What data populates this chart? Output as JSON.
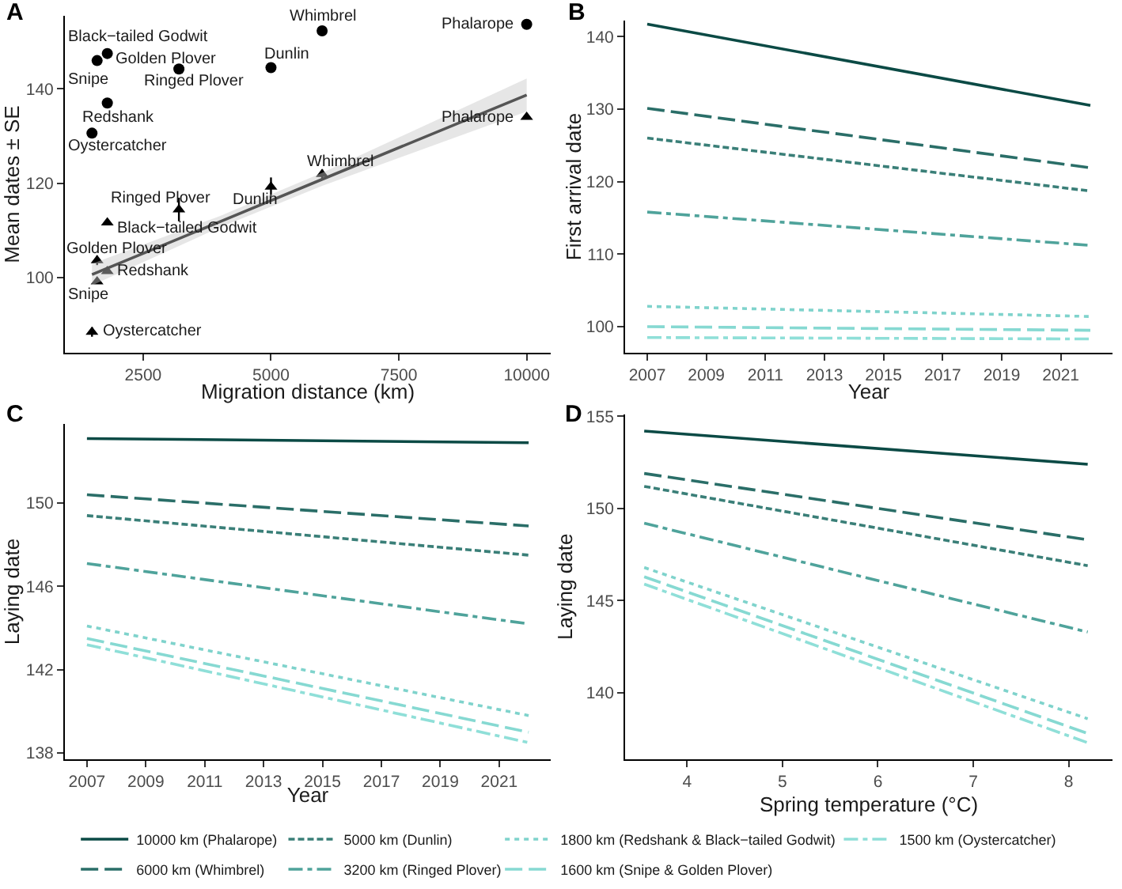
{
  "chart_data": [
    {
      "type": "scatter",
      "title": "A",
      "xlabel": "Migration distance (km)",
      "ylabel": "Mean dates ± SE",
      "xlim": [
        970,
        10470
      ],
      "ylim": [
        84,
        155.5
      ],
      "xticks": [
        2500,
        5000,
        7500,
        10000
      ],
      "yticks": [
        100,
        120,
        140
      ],
      "series": [
        {
          "type": "scatter",
          "marker": "circle",
          "color": "#000000",
          "x": [
            1500,
            1600,
            1800,
            1800,
            3200,
            5000,
            6000,
            10000
          ],
          "values": [
            130.6,
            146,
            137,
            147.5,
            144.2,
            144.5,
            152.3,
            153.7
          ]
        },
        {
          "type": "scatter",
          "marker": "triangle",
          "color": "#000000",
          "x": [
            1500,
            1600,
            1600,
            1800,
            1800,
            3200,
            5000,
            6000,
            10000
          ],
          "values": [
            88.4,
            99.1,
            103.6,
            101.3,
            111.6,
            114.4,
            119.2,
            121.9,
            134
          ],
          "errors": [
            1,
            null,
            1,
            null,
            null,
            2.5,
            2,
            1,
            null
          ]
        },
        {
          "type": "line",
          "color": "#555555",
          "x": [
            1500,
            4000,
            6000,
            10000
          ],
          "values": [
            100.6,
            111.8,
            120.8,
            138.7
          ],
          "lower": [
            98.3,
            110.6,
            119.4,
            135.2
          ],
          "upper": [
            102.9,
            113.0,
            122.2,
            142.2
          ]
        }
      ],
      "annotations": [
        {
          "text": "Whimbrel",
          "x": 6000,
          "y": 152.3
        },
        {
          "text": "Phalarope",
          "x": 10000,
          "y": 153.7
        },
        {
          "text": "Black−tailed Godwit",
          "x": 1800,
          "y": 147.5
        },
        {
          "text": "Golden Plover",
          "x": 1600,
          "y": 146
        },
        {
          "text": "Snipe",
          "x": 1600,
          "y": 146
        },
        {
          "text": "Ringed Plover",
          "x": 3200,
          "y": 144.2
        },
        {
          "text": "Dunlin",
          "x": 5000,
          "y": 144.5
        },
        {
          "text": "Redshank",
          "x": 1800,
          "y": 137
        },
        {
          "text": "Oystercatcher",
          "x": 1500,
          "y": 130.6
        },
        {
          "text": "Phalarope",
          "x": 10000,
          "y": 134
        },
        {
          "text": "Whimbrel",
          "x": 6000,
          "y": 121.9
        },
        {
          "text": "Dunlin",
          "x": 5000,
          "y": 119.2
        },
        {
          "text": "Ringed Plover",
          "x": 3200,
          "y": 114.4
        },
        {
          "text": "Black−tailed Godwit",
          "x": 1800,
          "y": 111.6
        },
        {
          "text": "Golden Plover",
          "x": 1600,
          "y": 103.6
        },
        {
          "text": "Redshank",
          "x": 1800,
          "y": 101.3
        },
        {
          "text": "Snipe",
          "x": 1600,
          "y": 99.1
        },
        {
          "text": "Oystercatcher",
          "x": 1500,
          "y": 88.4
        }
      ]
    },
    {
      "type": "line",
      "title": "B",
      "xlabel": "Year",
      "ylabel": "First arrival date",
      "x": [
        2007,
        2022
      ],
      "xlim": [
        2006.25,
        2022.75
      ],
      "ylim": [
        96.4,
        142.2
      ],
      "xticks": [
        2007,
        2009,
        2011,
        2013,
        2015,
        2017,
        2019,
        2021
      ],
      "yticks": [
        100,
        110,
        120,
        130,
        140
      ],
      "series": [
        {
          "color": "#0b4a45",
          "line_style": "solid",
          "values": [
            141.7,
            130.5
          ]
        },
        {
          "color": "#2a6e68",
          "line_style": "longdash",
          "values": [
            130.1,
            121.9
          ]
        },
        {
          "color": "#3a7f78",
          "line_style": "dashed",
          "values": [
            126.0,
            118.7
          ]
        },
        {
          "color": "#4fa39b",
          "line_style": "dashdot",
          "values": [
            115.8,
            111.2
          ]
        },
        {
          "color": "#7fd3cc",
          "line_style": "dotted",
          "values": [
            102.8,
            101.4
          ]
        },
        {
          "color": "#86d9d2",
          "line_style": "longdash",
          "values": [
            100.0,
            99.5
          ]
        },
        {
          "color": "#8fdfd8",
          "line_style": "dashdot",
          "values": [
            98.5,
            98.3
          ]
        }
      ]
    },
    {
      "type": "line",
      "title": "C",
      "xlabel": "Year",
      "ylabel": "Laying date",
      "x": [
        2007,
        2022
      ],
      "xlim": [
        2006.25,
        2022.75
      ],
      "ylim": [
        137.7,
        153.8
      ],
      "xticks": [
        2007,
        2009,
        2011,
        2013,
        2015,
        2017,
        2019,
        2021
      ],
      "yticks": [
        138,
        142,
        146,
        150
      ],
      "series": [
        {
          "color": "#0b4a45",
          "line_style": "solid",
          "values": [
            153.1,
            152.9
          ]
        },
        {
          "color": "#2a6e68",
          "line_style": "longdash",
          "values": [
            150.4,
            148.9
          ]
        },
        {
          "color": "#3a7f78",
          "line_style": "dashed",
          "values": [
            149.4,
            147.5
          ]
        },
        {
          "color": "#4fa39b",
          "line_style": "dashdot",
          "values": [
            147.1,
            144.2
          ]
        },
        {
          "color": "#7fd3cc",
          "line_style": "dotted",
          "values": [
            144.1,
            139.8
          ]
        },
        {
          "color": "#86d9d2",
          "line_style": "longdash",
          "values": [
            143.5,
            139.0
          ]
        },
        {
          "color": "#8fdfd8",
          "line_style": "dashdot",
          "values": [
            143.2,
            138.5
          ]
        }
      ]
    },
    {
      "type": "line",
      "title": "D",
      "xlabel": "Spring temperature (°C)",
      "ylabel": "Laying date",
      "x": [
        3.55,
        8.2
      ],
      "xlim": [
        3.35,
        8.46
      ],
      "ylim": [
        136.4,
        155.1
      ],
      "xticks": [
        4,
        5,
        6,
        7,
        8
      ],
      "yticks": [
        140,
        145,
        150,
        155
      ],
      "legend": "bottom",
      "series": [
        {
          "name": "10000 km (Phalarope)",
          "color": "#0b4a45",
          "line_style": "solid",
          "values": [
            154.2,
            152.4
          ]
        },
        {
          "name": "6000 km (Whimbrel)",
          "color": "#2a6e68",
          "line_style": "longdash",
          "values": [
            151.9,
            148.3
          ]
        },
        {
          "name": "5000 km (Dunlin)",
          "color": "#3a7f78",
          "line_style": "dashed",
          "values": [
            151.2,
            146.9
          ]
        },
        {
          "name": "3200 km (Ringed Plover)",
          "color": "#4fa39b",
          "line_style": "dashdot",
          "values": [
            149.2,
            143.3
          ]
        },
        {
          "name": "1800 km (Redshank & Black−tailed Godwit)",
          "color": "#7fd3cc",
          "line_style": "dotted",
          "values": [
            146.8,
            138.6
          ]
        },
        {
          "name": "1600 km (Snipe & Golden Plover)",
          "color": "#86d9d2",
          "line_style": "longdash",
          "values": [
            146.3,
            137.8
          ]
        },
        {
          "name": "1500 km (Oystercatcher)",
          "color": "#8fdfd8",
          "line_style": "dashdot",
          "values": [
            145.9,
            137.3
          ]
        }
      ]
    }
  ]
}
